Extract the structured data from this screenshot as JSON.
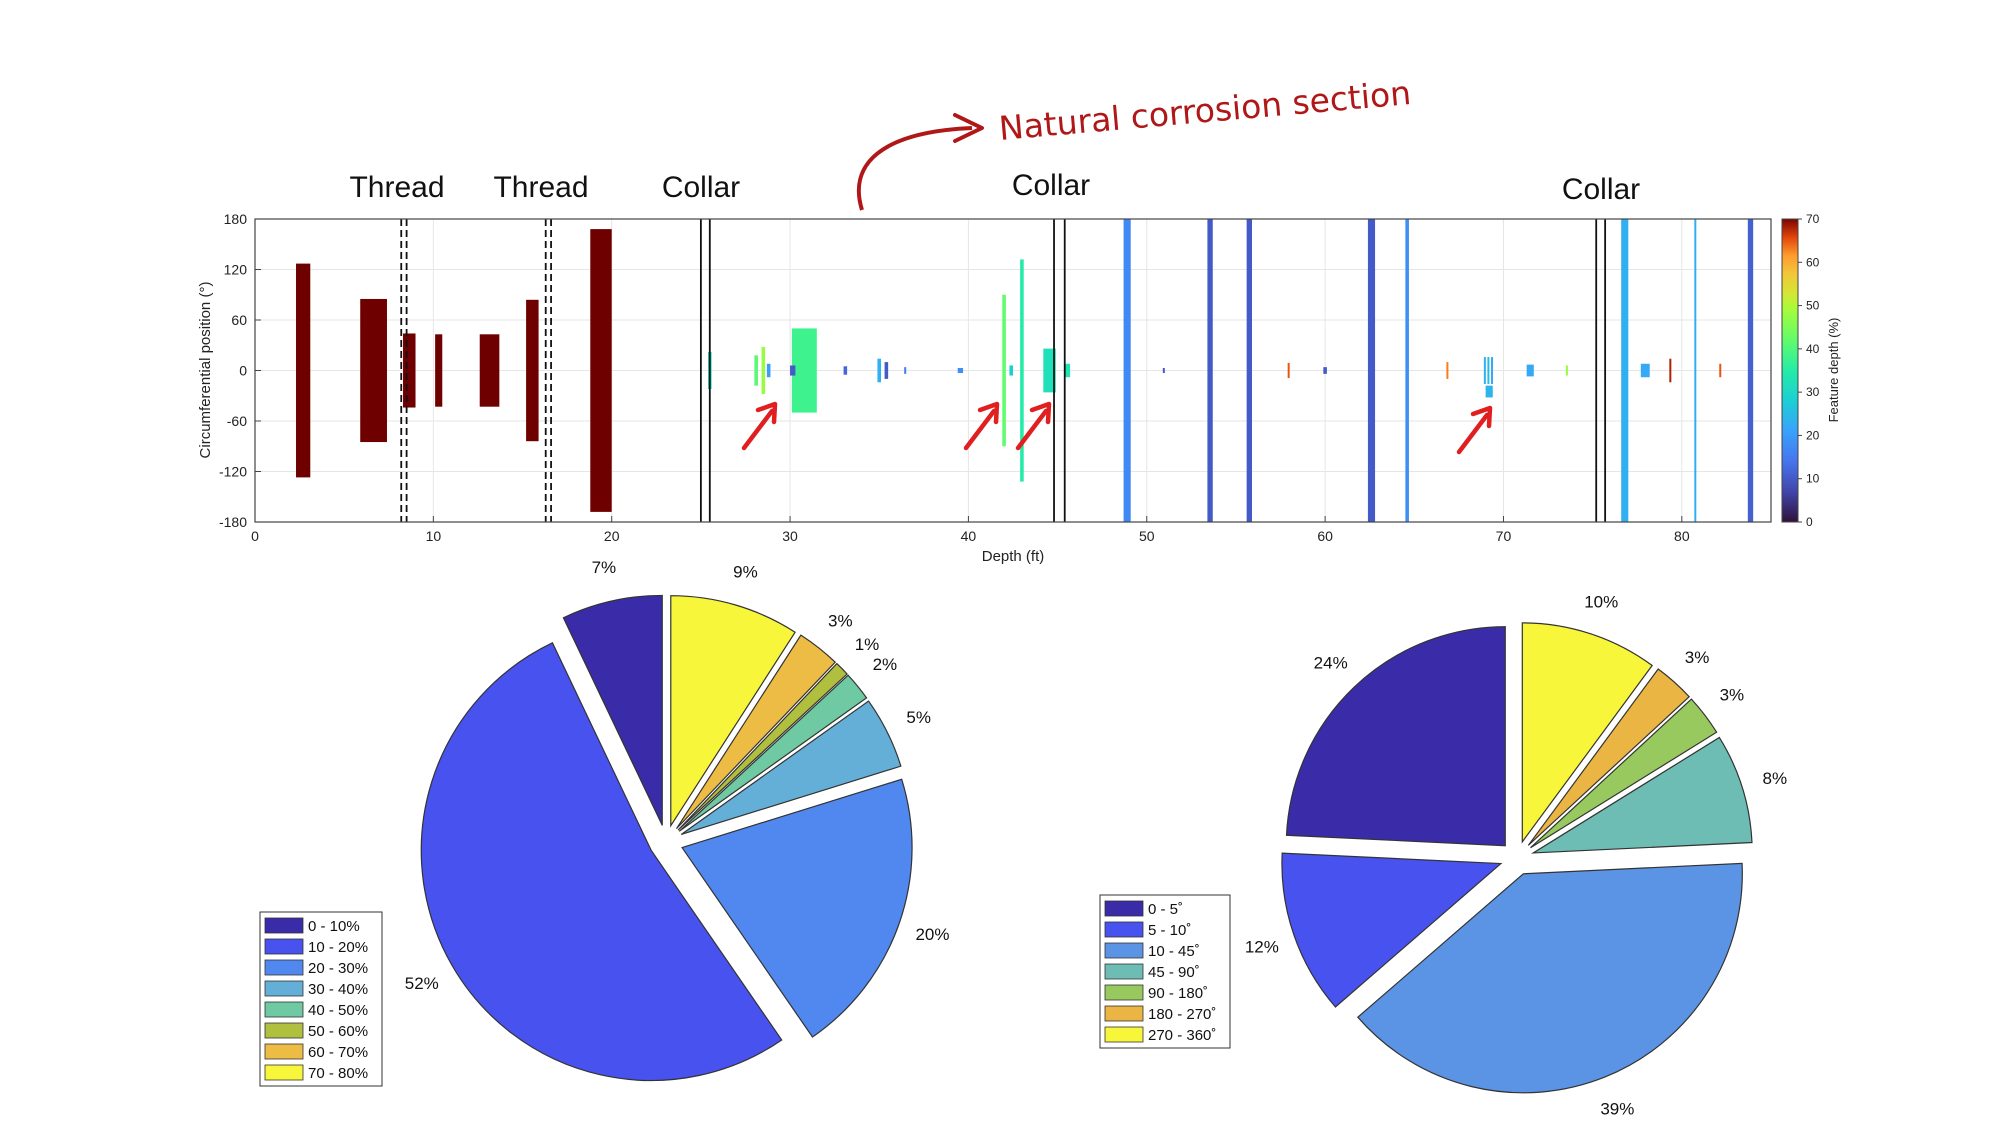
{
  "annotations": {
    "thread_1": "Thread",
    "thread_2": "Thread",
    "collar_1": "Collar",
    "collar_2": "Collar",
    "collar_3": "Collar",
    "natural_corrosion": "Natural corrosion section"
  },
  "colors": {
    "annotation_red": "#b01818",
    "arrow_red": "#e02020",
    "dark_red_feature": "#6e0000"
  },
  "chart_data": [
    {
      "type": "scatter",
      "title": "",
      "xlabel": "Depth (ft)",
      "ylabel": "Circumferential position (°)",
      "colorbar_label": "Feature depth (%)",
      "xlim": [
        0,
        85
      ],
      "ylim": [
        -180,
        180
      ],
      "xticks": [
        0,
        10,
        20,
        30,
        40,
        50,
        60,
        70,
        80
      ],
      "yticks": [
        -180,
        -120,
        -60,
        0,
        60,
        120,
        180
      ],
      "colorbar_ticks": [
        0,
        10,
        20,
        30,
        40,
        50,
        60,
        70
      ],
      "colorbar_range": [
        0,
        70
      ],
      "grid": true,
      "collar_lines": [
        25,
        25.5,
        44.8,
        45.4,
        75.2,
        75.7
      ],
      "thread_lines": [
        8.2,
        8.5,
        16.3,
        16.6
      ],
      "features": [
        {
          "x0": 2.3,
          "x1": 3.1,
          "y0": -127,
          "y1": 127,
          "depth": 70
        },
        {
          "x0": 5.9,
          "x1": 7.4,
          "y0": -85,
          "y1": 85,
          "depth": 70
        },
        {
          "x0": 8.3,
          "x1": 9.0,
          "y0": -44,
          "y1": 44,
          "depth": 70
        },
        {
          "x0": 10.1,
          "x1": 10.5,
          "y0": -43,
          "y1": 43,
          "depth": 70
        },
        {
          "x0": 12.6,
          "x1": 13.7,
          "y0": -43,
          "y1": 43,
          "depth": 70
        },
        {
          "x0": 15.2,
          "x1": 15.9,
          "y0": -84,
          "y1": 84,
          "depth": 70
        },
        {
          "x0": 18.8,
          "x1": 20.0,
          "y0": -168,
          "y1": 168,
          "depth": 70
        },
        {
          "x0": 25.4,
          "x1": 25.6,
          "y0": -22,
          "y1": 22,
          "depth": 30
        },
        {
          "x0": 28.0,
          "x1": 28.2,
          "y0": -18,
          "y1": 18,
          "depth": 41
        },
        {
          "x0": 28.4,
          "x1": 28.6,
          "y0": -28,
          "y1": 28,
          "depth": 48
        },
        {
          "x0": 28.7,
          "x1": 28.9,
          "y0": -8,
          "y1": 8,
          "depth": 20
        },
        {
          "x0": 30.1,
          "x1": 31.5,
          "y0": -50,
          "y1": 50,
          "depth": 38
        },
        {
          "x0": 30.0,
          "x1": 30.3,
          "y0": -6,
          "y1": 6,
          "depth": 10
        },
        {
          "x0": 33.0,
          "x1": 33.2,
          "y0": -5,
          "y1": 5,
          "depth": 12
        },
        {
          "x0": 34.9,
          "x1": 35.1,
          "y0": -14,
          "y1": 14,
          "depth": 23
        },
        {
          "x0": 35.3,
          "x1": 35.5,
          "y0": -10,
          "y1": 10,
          "depth": 10
        },
        {
          "x0": 36.4,
          "x1": 36.5,
          "y0": -4,
          "y1": 4,
          "depth": 15
        },
        {
          "x0": 39.4,
          "x1": 39.7,
          "y0": -3,
          "y1": 3,
          "depth": 18
        },
        {
          "x0": 41.9,
          "x1": 42.1,
          "y0": -90,
          "y1": 90,
          "depth": 42
        },
        {
          "x0": 42.3,
          "x1": 42.5,
          "y0": -6,
          "y1": 6,
          "depth": 28
        },
        {
          "x0": 42.9,
          "x1": 43.1,
          "y0": -132,
          "y1": 132,
          "depth": 35
        },
        {
          "x0": 44.2,
          "x1": 44.9,
          "y0": -26,
          "y1": 26,
          "depth": 32
        },
        {
          "x0": 45.4,
          "x1": 45.7,
          "y0": -8,
          "y1": 8,
          "depth": 33
        },
        {
          "x0": 48.7,
          "x1": 49.1,
          "y0": -180,
          "y1": 180,
          "depth": 17
        },
        {
          "x0": 50.9,
          "x1": 51.0,
          "y0": -3,
          "y1": 3,
          "depth": 10
        },
        {
          "x0": 53.4,
          "x1": 53.7,
          "y0": -180,
          "y1": 180,
          "depth": 10
        },
        {
          "x0": 55.6,
          "x1": 55.9,
          "y0": -180,
          "y1": 180,
          "depth": 10
        },
        {
          "x0": 57.9,
          "x1": 58.0,
          "y0": -9,
          "y1": 9,
          "depth": 65
        },
        {
          "x0": 59.9,
          "x1": 60.1,
          "y0": -4,
          "y1": 4,
          "depth": 10
        },
        {
          "x0": 62.4,
          "x1": 62.8,
          "y0": -180,
          "y1": 180,
          "depth": 10
        },
        {
          "x0": 64.5,
          "x1": 64.7,
          "y0": -180,
          "y1": 180,
          "depth": 18
        },
        {
          "x0": 66.8,
          "x1": 66.9,
          "y0": -10,
          "y1": 10,
          "depth": 63
        },
        {
          "x0": 68.9,
          "x1": 69.0,
          "y0": -16,
          "y1": 16,
          "depth": 23
        },
        {
          "x0": 69.1,
          "x1": 69.2,
          "y0": -16,
          "y1": 16,
          "depth": 25
        },
        {
          "x0": 69.3,
          "x1": 69.4,
          "y0": -16,
          "y1": 16,
          "depth": 22
        },
        {
          "x0": 69.0,
          "x1": 69.4,
          "y0": -32,
          "y1": -18,
          "depth": 24
        },
        {
          "x0": 71.3,
          "x1": 71.7,
          "y0": -7,
          "y1": 7,
          "depth": 22
        },
        {
          "x0": 73.5,
          "x1": 73.6,
          "y0": -6,
          "y1": 6,
          "depth": 48
        },
        {
          "x0": 76.6,
          "x1": 77.0,
          "y0": -180,
          "y1": 180,
          "depth": 23
        },
        {
          "x0": 77.7,
          "x1": 78.2,
          "y0": -8,
          "y1": 8,
          "depth": 22
        },
        {
          "x0": 79.3,
          "x1": 79.4,
          "y0": -14,
          "y1": 14,
          "depth": 68
        },
        {
          "x0": 80.7,
          "x1": 80.8,
          "y0": -180,
          "y1": 180,
          "depth": 23
        },
        {
          "x0": 82.1,
          "x1": 82.2,
          "y0": -8,
          "y1": 8,
          "depth": 65
        },
        {
          "x0": 83.7,
          "x1": 84.0,
          "y0": -180,
          "y1": 180,
          "depth": 11
        }
      ]
    },
    {
      "type": "pie",
      "title": "",
      "legend_position": "bottom-left",
      "slices": [
        {
          "label": "0 - 10%",
          "value": 7,
          "display": "7%",
          "color": "#3a2ca8"
        },
        {
          "label": "10 - 20%",
          "value": 52,
          "display": "52%",
          "color": "#4852ee"
        },
        {
          "label": "20 - 30%",
          "value": 20,
          "display": "20%",
          "color": "#5188ef"
        },
        {
          "label": "30 - 40%",
          "value": 5,
          "display": "5%",
          "color": "#64afd8"
        },
        {
          "label": "40 - 50%",
          "value": 2,
          "display": "2%",
          "color": "#6fc9a2"
        },
        {
          "label": "50 - 60%",
          "value": 1,
          "display": "1%",
          "color": "#b0bf3e"
        },
        {
          "label": "60 - 70%",
          "value": 3,
          "display": "3%",
          "color": "#edbc45"
        },
        {
          "label": "70 - 80%",
          "value": 9,
          "display": "9%",
          "color": "#f8f63a"
        }
      ]
    },
    {
      "type": "pie",
      "title": "",
      "legend_position": "left",
      "slices": [
        {
          "label": "0 - 5˚",
          "value": 24,
          "display": "24%",
          "color": "#3a2ca8"
        },
        {
          "label": "5 - 10˚",
          "value": 12,
          "display": "12%",
          "color": "#4852ee"
        },
        {
          "label": "10 - 45˚",
          "value": 39,
          "display": "39%",
          "color": "#5b94e4"
        },
        {
          "label": "45 - 90˚",
          "value": 8,
          "display": "8%",
          "color": "#6dbdb4"
        },
        {
          "label": "90 - 180˚",
          "value": 3,
          "display": "3%",
          "color": "#98c95e"
        },
        {
          "label": "180 - 270˚",
          "value": 3,
          "display": "3%",
          "color": "#ebb543"
        },
        {
          "label": "270 - 360˚",
          "value": 10,
          "display": "10%",
          "color": "#f8f63a"
        }
      ]
    }
  ]
}
